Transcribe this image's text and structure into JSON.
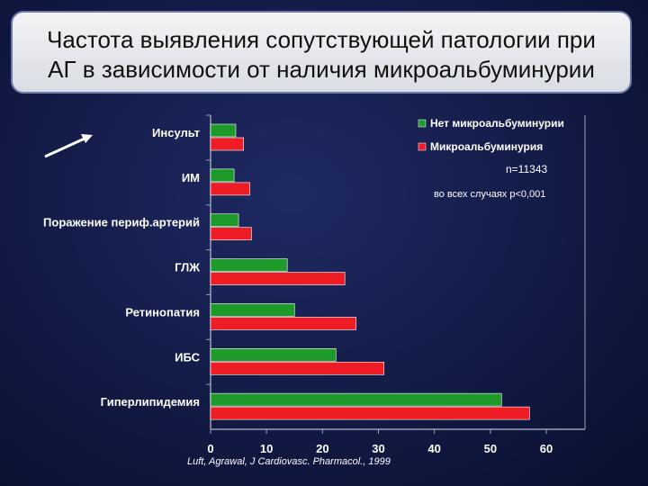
{
  "title": {
    "line1": "Частота выявления сопутствующей патологии при",
    "line2": "АГ в зависимости от наличия микроальбуминурии"
  },
  "annotations": {
    "n": "n=11343",
    "p": "во всех случаях p<0,001",
    "source": "Luft, Agrawal, J Cardiovasc. Pharmacol., 1999"
  },
  "colors": {
    "no_mau": "#1e9a2a",
    "mau": "#ee1c24",
    "axis": "#9aa0b8",
    "label": "#ffffff"
  },
  "chart_data": {
    "type": "bar",
    "orientation": "horizontal",
    "categories": [
      "Инсульт",
      "ИМ",
      "Поражение периф.артерий",
      "ГЛЖ",
      "Ретинопатия",
      "ИБС",
      "Гиперлипидемия"
    ],
    "series": [
      {
        "name": "Нет микроальбуминурии",
        "color": "#1e9a2a",
        "values": [
          4.5,
          4.2,
          5.0,
          13.7,
          15.0,
          22.4,
          52.0
        ]
      },
      {
        "name": "Микроальбуминурия",
        "color": "#ee1c24",
        "values": [
          5.9,
          7.0,
          7.3,
          24.0,
          26.0,
          31.0,
          57.0
        ]
      }
    ],
    "xticks": [
      0,
      10,
      20,
      30,
      40,
      50,
      60
    ],
    "xlim": [
      0,
      66
    ],
    "legend": "top-right",
    "grid": false
  }
}
